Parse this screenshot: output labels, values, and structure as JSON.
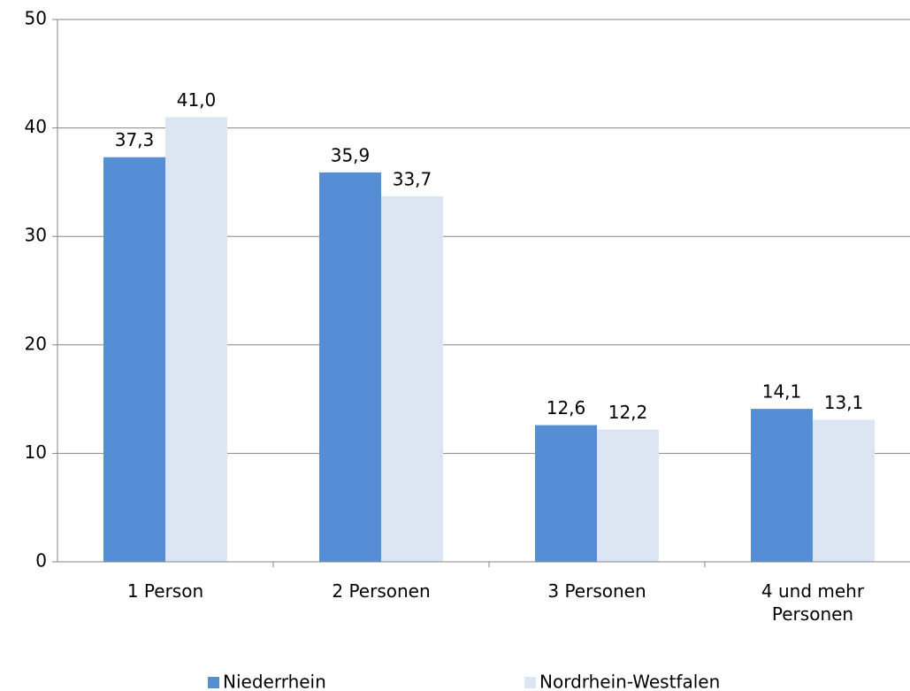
{
  "chart_data": {
    "type": "bar",
    "categories": [
      "1 Person",
      "2 Personen",
      "3 Personen",
      "4 und mehr Personen"
    ],
    "series": [
      {
        "name": "Niederrhein",
        "color": "#558ed5",
        "values": [
          37.3,
          35.9,
          12.6,
          14.1
        ],
        "value_labels": [
          "37,3",
          "35,9",
          "12,6",
          "14,1"
        ]
      },
      {
        "name": "Nordrhein-Westfalen",
        "color": "#dce6f2",
        "values": [
          41.0,
          33.7,
          12.2,
          13.1
        ],
        "value_labels": [
          "41,0",
          "33,7",
          "12,2",
          "13,1"
        ]
      }
    ],
    "ylim": [
      0,
      50
    ],
    "yticks": [
      0,
      10,
      20,
      30,
      40,
      50
    ],
    "grid": true,
    "legend": "bottom"
  }
}
